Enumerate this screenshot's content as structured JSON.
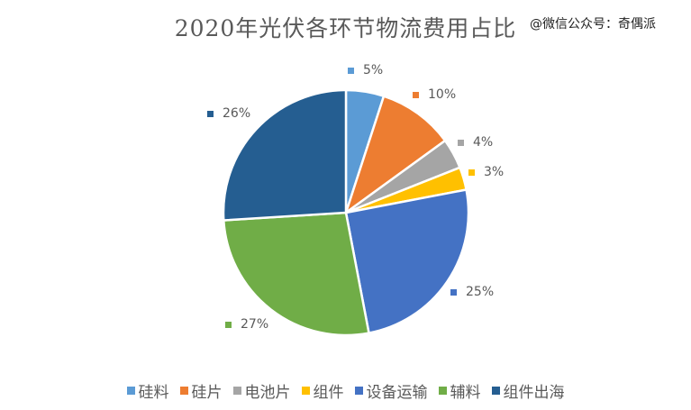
{
  "chart_data": {
    "type": "pie",
    "title": "2020年光伏各环节物流费用占比",
    "categories": [
      "硅料",
      "硅片",
      "电池片",
      "组件",
      "设备运输",
      "辅料",
      "组件出海"
    ],
    "values": [
      5,
      10,
      4,
      3,
      25,
      27,
      26
    ],
    "value_labels": [
      "5%",
      "10%",
      "4%",
      "3%",
      "25%",
      "27%",
      "26%"
    ],
    "colors": [
      "#5B9BD5",
      "#ED7D31",
      "#A5A5A5",
      "#FFC000",
      "#4472C4",
      "#70AD47",
      "#255E91"
    ],
    "legend_position": "bottom",
    "start_angle_deg": 0,
    "direction": "clockwise"
  },
  "watermark": "@微信公众号：奇偶派"
}
